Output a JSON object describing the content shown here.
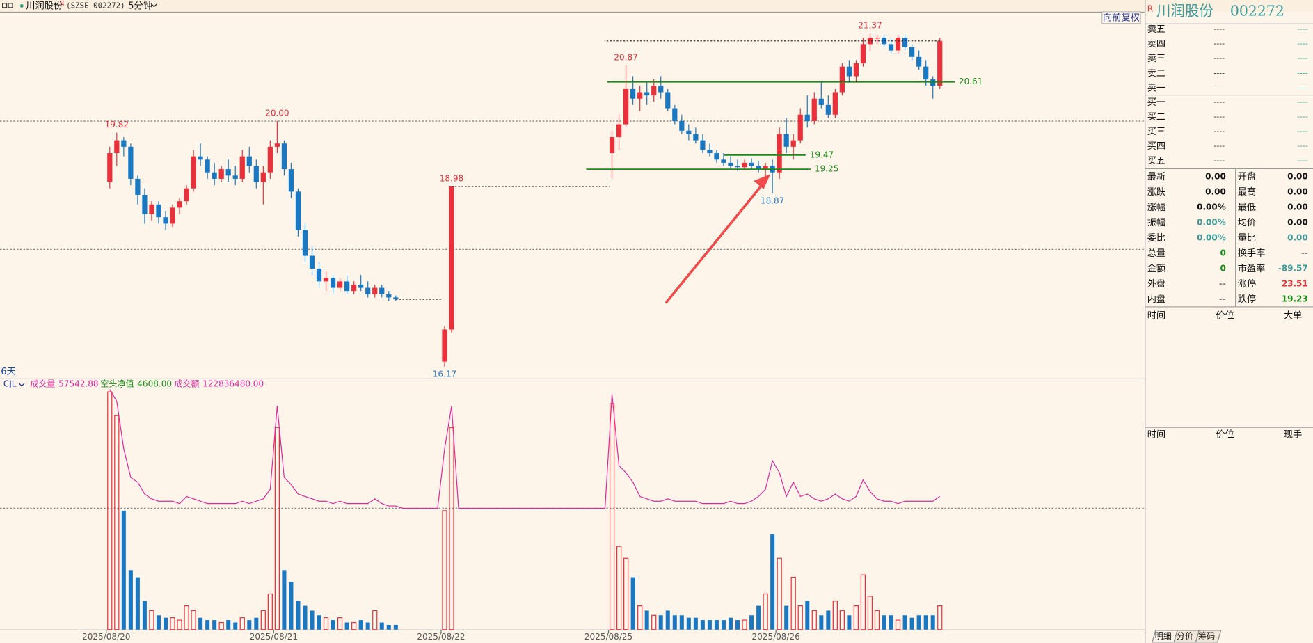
{
  "toolbar": {
    "name": "川润股份",
    "mark": "R",
    "exchange": "(SZSE 002272)",
    "period": "5分钟"
  },
  "quote": {
    "logo": "R",
    "name": "川润股份",
    "code": "002272",
    "asks": [
      {
        "label": "卖五",
        "price": "----",
        "volume": "----"
      },
      {
        "label": "卖四",
        "price": "----",
        "volume": "----"
      },
      {
        "label": "卖三",
        "price": "----",
        "volume": "----"
      },
      {
        "label": "卖二",
        "price": "----",
        "volume": "----"
      },
      {
        "label": "卖一",
        "price": "----",
        "volume": "----"
      }
    ],
    "bids": [
      {
        "label": "买一",
        "price": "----",
        "volume": "----"
      },
      {
        "label": "买二",
        "price": "----",
        "volume": "----"
      },
      {
        "label": "买三",
        "price": "----",
        "volume": "----"
      },
      {
        "label": "买四",
        "price": "----",
        "volume": "----"
      },
      {
        "label": "买五",
        "price": "----",
        "volume": "----"
      }
    ],
    "stats": [
      [
        "最新",
        "0.00",
        "开盘",
        "0.00"
      ],
      [
        "涨跌",
        "0.00",
        "最高",
        "0.00"
      ],
      [
        "涨幅",
        "0.00%",
        "最低",
        "0.00"
      ],
      [
        "振幅",
        "0.00%",
        "均价",
        "0.00"
      ],
      [
        "委比",
        "0.00%",
        "量比",
        "0.00"
      ],
      [
        "总量",
        "0",
        "换手率",
        "--"
      ],
      [
        "金额",
        "0",
        "市盈率",
        "-89.57"
      ],
      [
        "外盘",
        "--",
        "涨停",
        "23.51"
      ],
      [
        "内盘",
        "--",
        "跌停",
        "19.23"
      ]
    ],
    "trade_headers_1": [
      "时间",
      "价位",
      "大单"
    ],
    "trade_headers_2": [
      "时间",
      "价位",
      "现手"
    ]
  },
  "tabs": [
    "明细",
    "分价",
    "筹码"
  ],
  "chart_data": {
    "type": "candlestick",
    "adjust": "向前复权",
    "period_label": "6天",
    "dates": [
      "2025/08/20",
      "2025/08/21",
      "2025/08/22",
      "2025/08/25",
      "2025/08/26"
    ],
    "ylim": [
      15.987,
      21.705
    ],
    "yticks": [
      18,
      20
    ],
    "grid": true,
    "candles": [
      [
        19.05,
        19.6,
        18.95,
        19.5
      ],
      [
        19.5,
        19.82,
        19.3,
        19.7
      ],
      [
        19.7,
        19.75,
        19.45,
        19.6
      ],
      [
        19.6,
        19.65,
        19.0,
        19.1
      ],
      [
        19.1,
        19.15,
        18.7,
        18.85
      ],
      [
        18.85,
        18.95,
        18.4,
        18.55
      ],
      [
        18.55,
        18.75,
        18.45,
        18.7
      ],
      [
        18.7,
        18.75,
        18.4,
        18.5
      ],
      [
        18.5,
        18.6,
        18.3,
        18.4
      ],
      [
        18.4,
        18.7,
        18.35,
        18.65
      ],
      [
        18.65,
        18.8,
        18.55,
        18.75
      ],
      [
        18.75,
        19.0,
        18.7,
        18.95
      ],
      [
        18.95,
        19.55,
        18.9,
        19.45
      ],
      [
        19.45,
        19.65,
        19.3,
        19.4
      ],
      [
        19.4,
        19.45,
        19.1,
        19.2
      ],
      [
        19.2,
        19.35,
        19.0,
        19.1
      ],
      [
        19.1,
        19.3,
        19.05,
        19.25
      ],
      [
        19.25,
        19.4,
        19.05,
        19.15
      ],
      [
        19.15,
        19.3,
        19.0,
        19.1
      ],
      [
        19.1,
        19.55,
        19.05,
        19.45
      ],
      [
        19.45,
        19.6,
        19.2,
        19.3
      ],
      [
        19.3,
        19.4,
        18.95,
        19.05
      ],
      [
        19.05,
        19.3,
        18.7,
        19.2
      ],
      [
        19.2,
        19.7,
        19.1,
        19.6
      ],
      [
        19.6,
        20.0,
        19.5,
        19.65
      ],
      [
        19.65,
        19.7,
        19.15,
        19.25
      ],
      [
        19.25,
        19.35,
        18.8,
        18.9
      ],
      [
        18.9,
        18.95,
        18.2,
        18.3
      ],
      [
        18.3,
        18.4,
        17.8,
        17.9
      ],
      [
        17.9,
        18.05,
        17.6,
        17.7
      ],
      [
        17.7,
        17.8,
        17.4,
        17.5
      ],
      [
        17.5,
        17.65,
        17.35,
        17.55
      ],
      [
        17.55,
        17.6,
        17.3,
        17.4
      ],
      [
        17.4,
        17.55,
        17.35,
        17.5
      ],
      [
        17.5,
        17.6,
        17.3,
        17.35
      ],
      [
        17.35,
        17.5,
        17.3,
        17.45
      ],
      [
        17.45,
        17.6,
        17.35,
        17.4
      ],
      [
        17.4,
        17.5,
        17.25,
        17.3
      ],
      [
        17.3,
        17.45,
        17.25,
        17.4
      ],
      [
        17.4,
        17.45,
        17.25,
        17.3
      ],
      [
        17.3,
        17.35,
        17.2,
        17.25
      ],
      [
        17.25,
        17.28,
        17.2,
        17.22
      ],
      null,
      null,
      null,
      null,
      null,
      null,
      [
        16.25,
        16.8,
        16.17,
        16.75
      ],
      [
        16.75,
        18.98,
        16.7,
        18.98
      ],
      null,
      null,
      null,
      null,
      null,
      null,
      null,
      null,
      null,
      null,
      null,
      null,
      null,
      null,
      null,
      null,
      null,
      null,
      null,
      null,
      null,
      null,
      [
        19.5,
        19.85,
        19.1,
        19.75
      ],
      [
        19.75,
        20.1,
        19.55,
        19.95
      ],
      [
        19.95,
        20.87,
        19.9,
        20.5
      ],
      [
        20.5,
        20.7,
        20.25,
        20.35
      ],
      [
        20.35,
        20.55,
        20.15,
        20.45
      ],
      [
        20.45,
        20.6,
        20.25,
        20.4
      ],
      [
        20.4,
        20.65,
        20.3,
        20.55
      ],
      [
        20.55,
        20.7,
        20.35,
        20.45
      ],
      [
        20.45,
        20.5,
        20.15,
        20.2
      ],
      [
        20.2,
        20.25,
        19.95,
        20.0
      ],
      [
        20.0,
        20.1,
        19.8,
        19.85
      ],
      [
        19.85,
        19.95,
        19.7,
        19.8
      ],
      [
        19.8,
        19.9,
        19.65,
        19.7
      ],
      [
        19.7,
        19.8,
        19.5,
        19.55
      ],
      [
        19.55,
        19.65,
        19.45,
        19.5
      ],
      [
        19.5,
        19.55,
        19.35,
        19.4
      ],
      [
        19.4,
        19.5,
        19.3,
        19.35
      ],
      [
        19.35,
        19.45,
        19.25,
        19.3
      ],
      [
        19.3,
        19.4,
        19.22,
        19.28
      ],
      [
        19.28,
        19.4,
        19.25,
        19.35
      ],
      [
        19.35,
        19.42,
        19.25,
        19.3
      ],
      [
        19.3,
        19.38,
        19.2,
        19.25
      ],
      [
        19.25,
        19.35,
        19.1,
        19.3
      ],
      [
        19.3,
        19.4,
        18.87,
        19.2
      ],
      [
        19.2,
        19.9,
        19.1,
        19.8
      ],
      [
        19.8,
        20.05,
        19.5,
        19.6
      ],
      [
        19.6,
        19.8,
        19.4,
        19.7
      ],
      [
        19.7,
        20.2,
        19.65,
        20.1
      ],
      [
        20.1,
        20.4,
        19.9,
        20.0
      ],
      [
        20.0,
        20.45,
        19.95,
        20.35
      ],
      [
        20.35,
        20.6,
        20.2,
        20.25
      ],
      [
        20.25,
        20.4,
        20.05,
        20.1
      ],
      [
        20.1,
        20.5,
        20.05,
        20.45
      ],
      [
        20.45,
        20.9,
        20.4,
        20.85
      ],
      [
        20.85,
        20.95,
        20.6,
        20.7
      ],
      [
        20.7,
        20.95,
        20.6,
        20.9
      ],
      [
        20.9,
        21.3,
        20.85,
        21.2
      ],
      [
        21.2,
        21.37,
        21.1,
        21.3
      ],
      [
        21.3,
        21.35,
        21.2,
        21.3
      ],
      [
        21.3,
        21.35,
        21.15,
        21.2
      ],
      [
        21.2,
        21.3,
        21.05,
        21.1
      ],
      [
        21.1,
        21.35,
        21.05,
        21.3
      ],
      [
        21.3,
        21.35,
        21.1,
        21.15
      ],
      [
        21.15,
        21.2,
        20.95,
        21.0
      ],
      [
        21.0,
        21.1,
        20.8,
        20.85
      ],
      [
        20.85,
        20.95,
        20.55,
        20.65
      ],
      [
        20.65,
        20.7,
        20.35,
        20.55
      ],
      [
        20.55,
        21.3,
        20.5,
        21.25
      ]
    ],
    "extremes": [
      19.82,
      {
        "value": 20,
        "label": "20.00"
      },
      18.98,
      16.17,
      20.87,
      21.37,
      18.87
    ],
    "levels": [
      20.61,
      19.47,
      19.25
    ],
    "indicator": {
      "name": "CJL",
      "items": [
        {
          "name": "成交量",
          "value": 57542.88
        },
        {
          "name": "空头净值",
          "value": 4608,
          "label": "4608.00"
        },
        {
          "name": "成交额",
          "value": 122836480,
          "label": "122836480.00"
        }
      ]
    },
    "vlim": [
      0,
      100
    ],
    "volume": [
      100,
      90,
      50,
      25,
      22,
      12,
      8,
      6,
      5,
      5,
      4,
      10,
      8,
      5,
      4,
      4,
      3,
      4,
      3,
      5,
      4,
      5,
      8,
      15,
      85,
      25,
      20,
      12,
      10,
      8,
      6,
      5,
      4,
      5,
      3,
      3,
      4,
      3,
      8,
      3,
      2,
      2,
      null,
      null,
      null,
      null,
      null,
      null,
      50,
      85,
      null,
      null,
      null,
      null,
      null,
      null,
      null,
      null,
      null,
      null,
      null,
      null,
      null,
      null,
      null,
      null,
      null,
      null,
      null,
      null,
      null,
      null,
      95,
      35,
      30,
      22,
      10,
      8,
      6,
      6,
      8,
      6,
      6,
      5,
      5,
      4,
      4,
      4,
      4,
      5,
      4,
      4,
      6,
      10,
      15,
      40,
      30,
      10,
      22,
      10,
      12,
      8,
      6,
      8,
      12,
      8,
      6,
      10,
      23,
      14,
      8,
      6,
      6,
      4,
      6,
      5,
      6,
      6,
      6,
      10
    ],
    "amount": [
      101,
      96,
      76,
      64,
      62,
      57,
      55,
      54,
      54,
      54,
      53,
      56,
      55,
      54,
      53,
      53,
      53,
      53,
      53,
      54,
      53,
      54,
      55,
      59,
      94,
      64,
      61,
      57,
      56,
      55,
      54,
      54,
      53,
      54,
      53,
      53,
      53,
      53,
      55,
      53,
      52,
      52,
      51,
      51,
      51,
      51,
      51,
      51,
      76,
      94,
      51,
      51,
      51,
      51,
      51,
      51,
      51,
      51,
      51,
      51,
      51,
      51,
      51,
      51,
      51,
      51,
      51,
      51,
      51,
      51,
      51,
      51,
      99,
      69,
      66,
      62,
      56,
      55,
      54,
      54,
      55,
      54,
      54,
      54,
      54,
      53,
      53,
      53,
      53,
      54,
      53,
      53,
      54,
      56,
      59,
      71,
      66,
      56,
      62,
      56,
      57,
      55,
      54,
      55,
      57,
      55,
      54,
      56,
      63,
      58,
      55,
      54,
      54,
      53,
      54,
      54,
      54,
      54,
      54,
      56
    ]
  }
}
